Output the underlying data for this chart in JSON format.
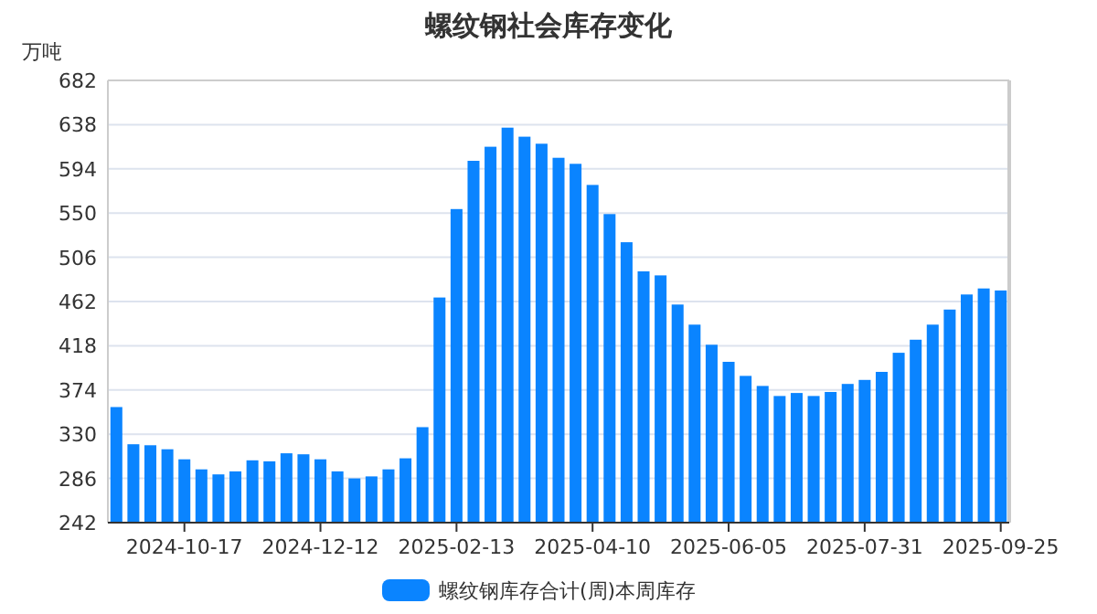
{
  "chart_data": {
    "type": "bar",
    "title": "螺纹钢社会库存变化",
    "ylabel": "万吨",
    "categories": [
      null,
      null,
      null,
      null,
      "2024-10-17",
      null,
      null,
      null,
      null,
      null,
      null,
      null,
      "2024-12-12",
      null,
      null,
      null,
      null,
      null,
      null,
      null,
      "2025-02-13",
      null,
      null,
      null,
      null,
      null,
      null,
      null,
      "2025-04-10",
      null,
      null,
      null,
      null,
      null,
      null,
      null,
      "2025-06-05",
      null,
      null,
      null,
      null,
      null,
      null,
      null,
      "2025-07-31",
      null,
      null,
      null,
      null,
      null,
      null,
      null,
      "2025-09-25"
    ],
    "series": [
      {
        "name": "螺纹钢库存合计(周)本周库存",
        "color": "#0a84ff",
        "values": [
          357,
          320,
          319,
          315,
          305,
          295,
          290,
          293,
          304,
          303,
          311,
          310,
          305,
          293,
          286,
          288,
          295,
          306,
          337,
          466,
          554,
          602,
          616,
          635,
          626,
          619,
          605,
          599,
          578,
          549,
          521,
          492,
          488,
          459,
          439,
          419,
          402,
          388,
          378,
          368,
          371,
          368,
          372,
          380,
          384,
          392,
          411,
          424,
          439,
          454,
          469,
          475,
          473
        ]
      }
    ],
    "ylim": [
      242,
      682
    ],
    "yticks": [
      242,
      286,
      330,
      374,
      418,
      462,
      506,
      550,
      594,
      638,
      682
    ],
    "grid": "y",
    "legend": "bottom"
  }
}
